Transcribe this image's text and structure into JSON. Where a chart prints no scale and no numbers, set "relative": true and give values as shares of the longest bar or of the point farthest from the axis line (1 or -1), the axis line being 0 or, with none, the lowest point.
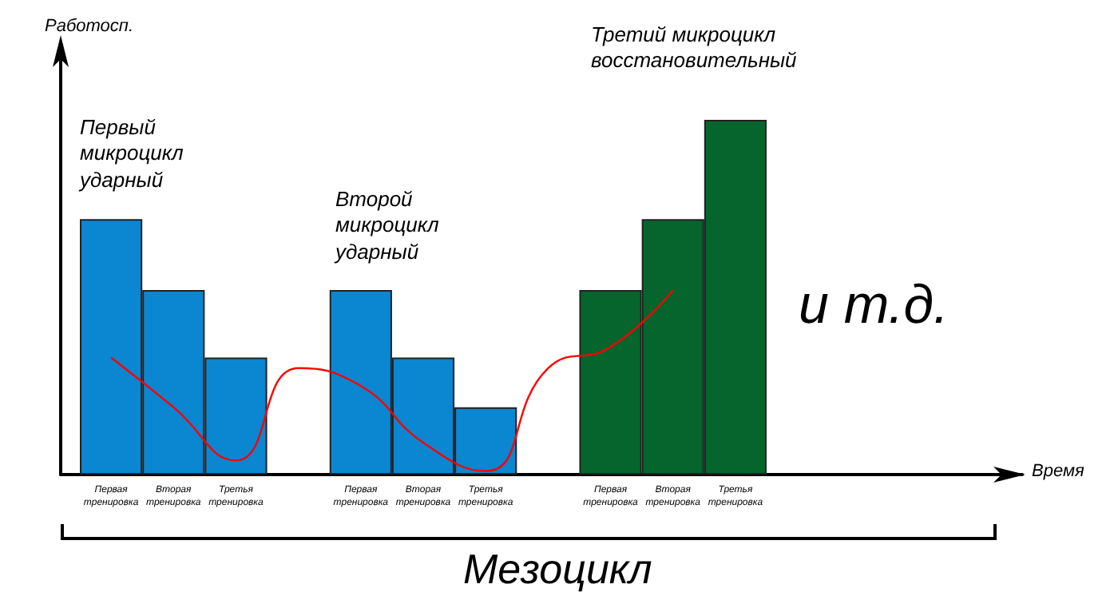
{
  "chart_data": {
    "type": "bar",
    "relative": true,
    "ylabel": "Работосп.",
    "categories": [
      "Первая тренировка",
      "Вторая тренировка",
      "Третья тренировка",
      null,
      "Первая тренировка",
      "Вторая тренировка",
      "Третья тренировка",
      null,
      "Первая тренировка",
      "Вторая тренировка",
      "Третья тренировка"
    ],
    "series": [
      {
        "values": [
          0.72,
          0.52,
          0.33,
          null,
          0.52,
          0.33,
          0.19,
          null,
          0.52,
          0.72,
          1
        ],
        "colors": [
          "#0b86d0",
          "#0b86d0",
          "#0b86d0",
          "#0b86d0",
          "#0b86d0",
          "#0b86d0",
          "#0b86d0",
          "#0b86d0",
          "#05652c",
          "#05652c",
          "#05652c"
        ]
      },
      {
        "type": "line",
        "color": "#ff0000",
        "marker": "none",
        "values": [
          0.33,
          0.19,
          0.04,
          0.3,
          0.25,
          0.09,
          0.01,
          0.3,
          0.36,
          0.52,
          null
        ]
      }
    ],
    "annotations": [
      "Первый микроцикл ударный",
      "Второй микроцикл ударный",
      "Третий микроцикл восстановительный",
      "и т.д.",
      "Мезоцикл",
      "Время"
    ]
  }
}
